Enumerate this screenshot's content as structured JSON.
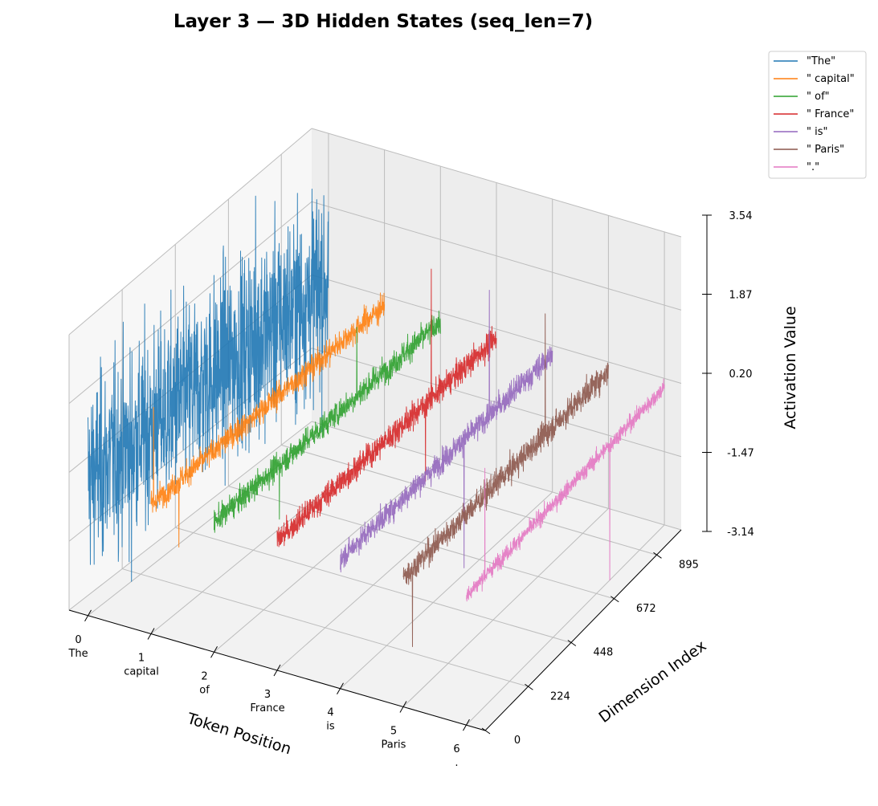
{
  "chart_data": {
    "type": "line",
    "projection": "3d",
    "title": "Layer 3 — 3D Hidden States (seq_len=7)",
    "xlabel": "Token Position",
    "ylabel": "Dimension Index",
    "zlabel": "Activation Value",
    "x_ticks": [
      {
        "value": 0,
        "label": "0",
        "sublabel": "The"
      },
      {
        "value": 1,
        "label": "1",
        "sublabel": "capital"
      },
      {
        "value": 2,
        "label": "2",
        "sublabel": "of"
      },
      {
        "value": 3,
        "label": "3",
        "sublabel": "France"
      },
      {
        "value": 4,
        "label": "4",
        "sublabel": "is"
      },
      {
        "value": 5,
        "label": "5",
        "sublabel": "Paris"
      },
      {
        "value": 6,
        "label": "6",
        "sublabel": "."
      }
    ],
    "y_ticks": [
      0,
      224,
      448,
      672,
      895
    ],
    "z_ticks": [
      "-3.14",
      "-1.47",
      "0.20",
      "1.87",
      "3.54"
    ],
    "xlim": [
      -0.3,
      6.3
    ],
    "ylim": [
      0,
      1023
    ],
    "zlim": [
      -3.14,
      3.54
    ],
    "grid": true,
    "legend_position": "top-right",
    "series": [
      {
        "name": "\"The\"",
        "x": 0,
        "color": "#1f77b4",
        "dims": 1024,
        "mean": 0.2,
        "noise_sd": 2.6,
        "spike_min": -3.14,
        "spike_max": 3.54
      },
      {
        "name": "\" capital\"",
        "x": 1,
        "color": "#ff7f0e",
        "dims": 1024,
        "mean": 0.0,
        "noise_sd": 0.35,
        "spike_min": -1.6,
        "spike_max": 2.3
      },
      {
        "name": "\" of\"",
        "x": 2,
        "color": "#2ca02c",
        "dims": 1024,
        "mean": 0.0,
        "noise_sd": 0.35,
        "spike_min": -1.3,
        "spike_max": 1.6
      },
      {
        "name": "\" France\"",
        "x": 3,
        "color": "#d62728",
        "dims": 1024,
        "mean": 0.0,
        "noise_sd": 0.35,
        "spike_min": -1.8,
        "spike_max": 3.0
      },
      {
        "name": "\" is\"",
        "x": 4,
        "color": "#9467bd",
        "dims": 1024,
        "mean": 0.0,
        "noise_sd": 0.33,
        "spike_min": -3.0,
        "spike_max": 2.9
      },
      {
        "name": "\" Paris\"",
        "x": 5,
        "color": "#8c564b",
        "dims": 1024,
        "mean": 0.0,
        "noise_sd": 0.35,
        "spike_min": -1.9,
        "spike_max": 2.8
      },
      {
        "name": "\".\"",
        "x": 6,
        "color": "#e377c2",
        "dims": 1024,
        "mean": 0.0,
        "noise_sd": 0.22,
        "spike_min": -3.14,
        "spike_max": 2.6
      }
    ]
  }
}
